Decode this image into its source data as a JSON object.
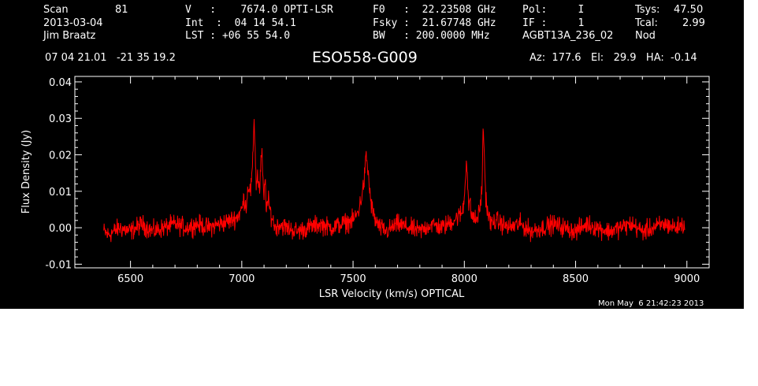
{
  "header": {
    "row1": {
      "scan_label": "Scan",
      "scan_value": "81",
      "velocity": "V   :    7674.0 OPTI-LSR",
      "f0": "F0   :  22.23508 GHz",
      "pol": "Pol:     I",
      "tsys_label": "Tsys:",
      "tsys_value": "47.50"
    },
    "row2": {
      "date": "2013-03-04",
      "int": "Int  :  04 14 54.1",
      "fsky": "Fsky :  21.67748 GHz",
      "if": "IF :     1",
      "tcal_label": "Tcal:",
      "tcal_value": "2.99"
    },
    "row3": {
      "observer": "Jim Braatz",
      "lst": "LST : +06 55 54.0",
      "bw": "BW   : 200.0000 MHz",
      "project": "AGBT13A_236_02",
      "mode": "Nod"
    },
    "coords": "07 04 21.01   -21 35 19.2",
    "source": "ESO558-G009",
    "pointing": "Az:  177.6   El:   29.9   HA:  -0.14"
  },
  "timestamp": "Mon May  6 21:42:23 2013",
  "colors": {
    "background": "#000000",
    "axes": "#ffffff",
    "trace": "#ff0000"
  },
  "chart_data": {
    "type": "line",
    "xlabel": "LSR Velocity (km/s) OPTICAL",
    "ylabel": "Flux Density (Jy)",
    "xlim": [
      6250,
      9100
    ],
    "ylim": [
      -0.011,
      0.0415
    ],
    "xticks": [
      6500,
      7000,
      7500,
      8000,
      8500,
      9000
    ],
    "xtick_labels": [
      "6500",
      "7000",
      "7500",
      "8000",
      "8500",
      "9000"
    ],
    "yticks": [
      -0.01,
      0,
      0.01,
      0.02,
      0.03,
      0.04
    ],
    "ytick_labels": [
      "-0.01",
      "0.00",
      "0.01",
      "0.02",
      "0.03",
      "0.04"
    ],
    "series": [
      {
        "color": "#ff0000",
        "x": [
          6380,
          6400,
          6450,
          6500,
          6550,
          6600,
          6650,
          6700,
          6750,
          6800,
          6850,
          6900,
          6950,
          6980,
          7000,
          7010,
          7020,
          7030,
          7040,
          7050,
          7055,
          7060,
          7065,
          7070,
          7080,
          7090,
          7095,
          7100,
          7105,
          7110,
          7120,
          7130,
          7140,
          7150,
          7170,
          7200,
          7250,
          7300,
          7350,
          7400,
          7450,
          7500,
          7520,
          7530,
          7540,
          7550,
          7555,
          7560,
          7565,
          7570,
          7575,
          7580,
          7590,
          7600,
          7620,
          7650,
          7700,
          7750,
          7800,
          7850,
          7900,
          7950,
          7990,
          8000,
          8010,
          8015,
          8020,
          8025,
          8030,
          8040,
          8050,
          8060,
          8070,
          8080,
          8085,
          8090,
          8095,
          8100,
          8110,
          8120,
          8140,
          8170,
          8200,
          8250,
          8300,
          8350,
          8400,
          8450,
          8500,
          8550,
          8600,
          8650,
          8700,
          8750,
          8800,
          8850,
          8900,
          8950,
          8990
        ],
        "y": [
          -0.001,
          -0.002,
          0.0,
          -0.001,
          0.001,
          -0.001,
          0.0,
          0.001,
          0.0,
          0.001,
          0.0,
          0.001,
          0.002,
          0.003,
          0.005,
          0.008,
          0.006,
          0.012,
          0.01,
          0.018,
          0.031,
          0.022,
          0.011,
          0.015,
          0.01,
          0.022,
          0.012,
          0.008,
          0.014,
          0.006,
          0.007,
          0.004,
          0.002,
          0.0,
          0.001,
          0.0,
          -0.001,
          0.0,
          0.001,
          0.0,
          0.001,
          0.002,
          0.004,
          0.006,
          0.009,
          0.013,
          0.017,
          0.02,
          0.016,
          0.014,
          0.01,
          0.007,
          0.004,
          0.002,
          0.0,
          -0.001,
          0.001,
          0.0,
          -0.001,
          0.001,
          0.0,
          0.002,
          0.004,
          0.008,
          0.02,
          0.012,
          0.006,
          0.007,
          0.004,
          0.003,
          0.002,
          0.003,
          0.005,
          0.012,
          0.028,
          0.02,
          0.01,
          0.006,
          0.003,
          0.001,
          0.002,
          0.001,
          0.0,
          0.001,
          -0.001,
          0.0,
          0.001,
          0.0,
          -0.001,
          0.001,
          0.0,
          -0.001,
          0.0,
          0.001,
          -0.001,
          0.0,
          0.001,
          0.0,
          0.001
        ]
      }
    ]
  }
}
